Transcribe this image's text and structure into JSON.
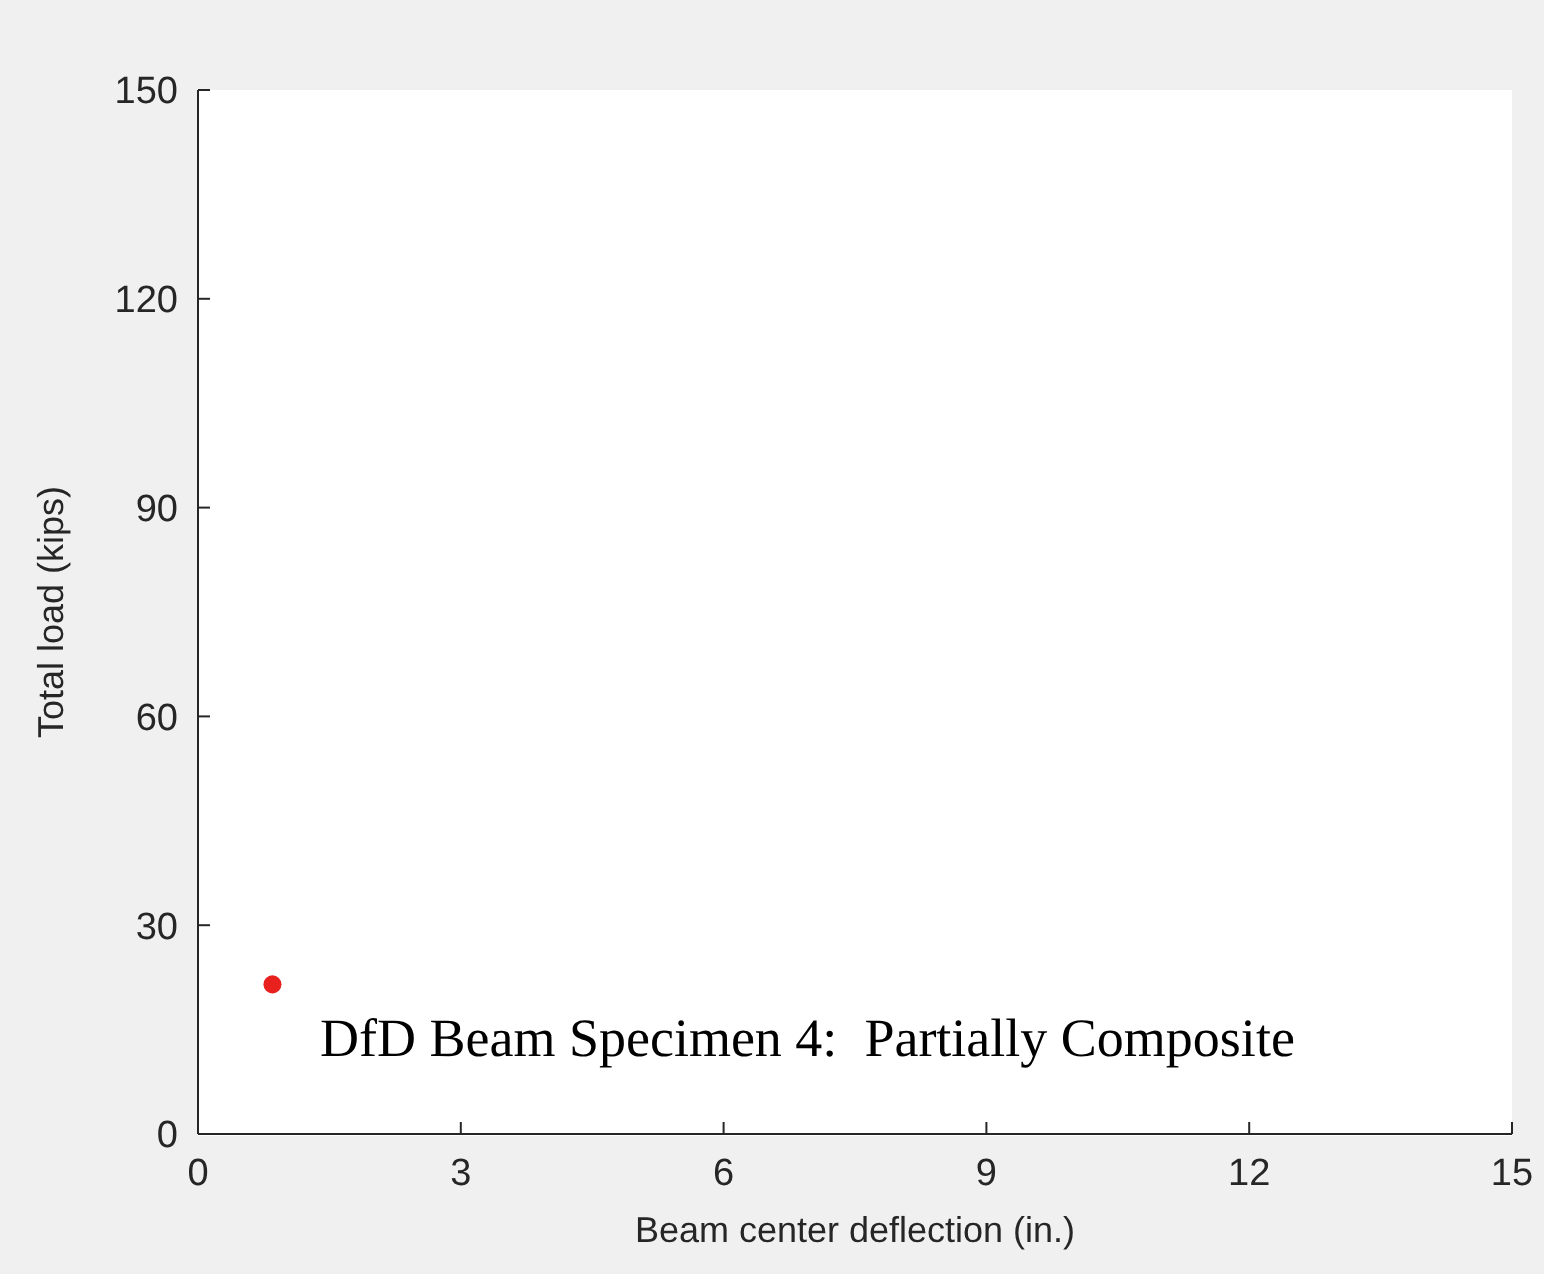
{
  "chart_data": {
    "type": "scatter",
    "xlabel": "Beam center deflection (in.)",
    "ylabel": "Total load (kips)",
    "x": [
      0.85
    ],
    "series": [
      {
        "color": "#e8201e",
        "values": [
          21.5
        ]
      }
    ],
    "xlim": [
      0,
      15
    ],
    "xticks": [
      0,
      3,
      6,
      9,
      12,
      15
    ],
    "ylim": [
      0,
      150
    ],
    "yticks": [
      0,
      30,
      60,
      90,
      120,
      150
    ],
    "grid": false,
    "legend": false,
    "marker": "circle",
    "annotations": [
      "DfD Beam Specimen 4:  Partially Composite"
    ]
  }
}
